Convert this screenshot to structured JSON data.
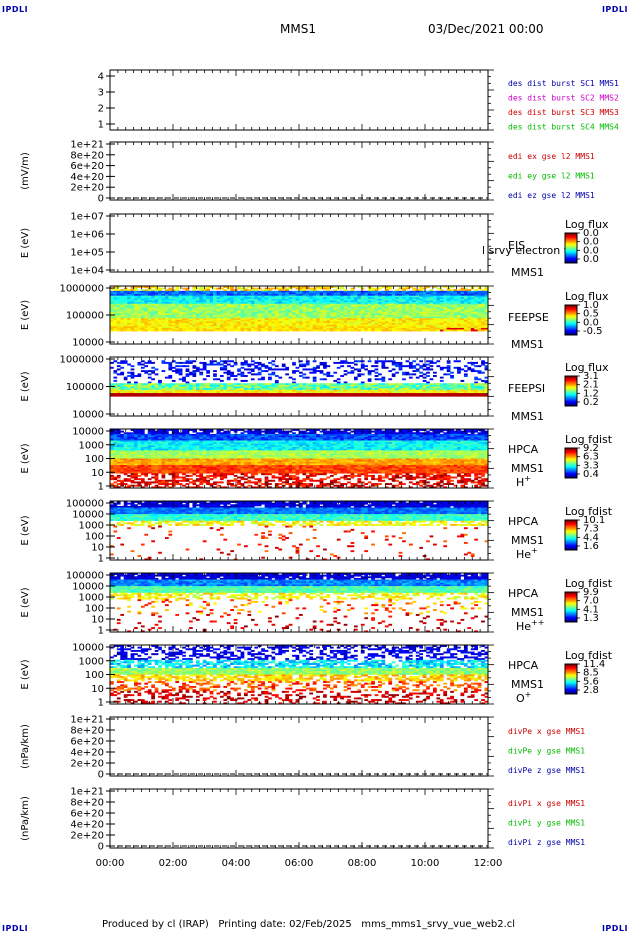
{
  "corner_label": "IPDLI",
  "header": {
    "spacecraft": "MMS1",
    "date": "03/Dec/2021 00:00"
  },
  "footer": {
    "produced_by": "Produced by cl (IRAP)",
    "printing_date": "Printing date: 02/Feb/2025",
    "file": "mms_mms1_srvy_vue_web2.cl"
  },
  "chart_data": {
    "type": "line",
    "x_range": [
      "00:00",
      "12:00"
    ],
    "x_ticks": [
      "00:00",
      "02:00",
      "04:00",
      "06:00",
      "08:00",
      "10:00",
      "12:00"
    ],
    "panels": [
      {
        "id": "burst",
        "ylabel": "",
        "yticks": [
          "1",
          "2",
          "3",
          "4"
        ],
        "ylim": [
          1,
          4
        ],
        "legend": [
          {
            "text": "des dist burst SC1 MMS1",
            "color": "#0000aa"
          },
          {
            "text": "des dist burst SC2 MMS2",
            "color": "#cc00cc"
          },
          {
            "text": "des dist burst SC3 MMS3",
            "color": "#cc0000"
          },
          {
            "text": "des dist burst SC4 MMS4",
            "color": "#00bb00"
          }
        ],
        "series": []
      },
      {
        "id": "edi",
        "ylabel": "(mV/m)",
        "yticks": [
          "0",
          "2e+20",
          "4e+20",
          "6e+20",
          "8e+20",
          "1e+21"
        ],
        "ylim": [
          0,
          1e+21
        ],
        "zero_line": true,
        "legend": [
          {
            "text": "edi ex gse l2 MMS1",
            "color": "#cc0000"
          },
          {
            "text": "edi ey gse l2 MMS1",
            "color": "#00bb00"
          },
          {
            "text": "edi ez gse l2 MMS1",
            "color": "#0000aa"
          }
        ],
        "series": [
          {
            "name": "edi ex gse l2 MMS1",
            "values": []
          },
          {
            "name": "edi ey gse l2 MMS1",
            "values": []
          },
          {
            "name": "edi ez gse l2 MMS1",
            "values": []
          }
        ]
      },
      {
        "id": "eis",
        "ylabel": "E (eV)",
        "yticks": [
          "1e+04",
          "1e+05",
          "1e+06",
          "1e+07"
        ],
        "ylog": true,
        "ylim": [
          10000.0,
          10000000.0
        ],
        "right_labels": [
          "EIS",
          "MMS1"
        ],
        "overlay_label": "l srvy electron to",
        "colorbar": {
          "title": "Log flux",
          "ticks": [
            "0.0",
            "0.0",
            "0.0",
            "0.0"
          ]
        },
        "spectrogram": "empty"
      },
      {
        "id": "feepse",
        "ylabel": "E (eV)",
        "yticks": [
          "10000",
          "100000",
          "1000000"
        ],
        "ylog": true,
        "ylim": [
          10000.0,
          1000000.0
        ],
        "right_labels": [
          "FEEPSE",
          "MMS1"
        ],
        "colorbar": {
          "title": "Log flux",
          "ticks": [
            "1.0",
            "0.5",
            "0.0",
            "-0.5"
          ]
        },
        "spectrogram": "feeps_electron"
      },
      {
        "id": "feepsi",
        "ylabel": "E (eV)",
        "yticks": [
          "10000",
          "100000",
          "1000000"
        ],
        "ylog": true,
        "ylim": [
          10000.0,
          1000000.0
        ],
        "right_labels": [
          "FEEPSI",
          "MMS1"
        ],
        "colorbar": {
          "title": "Log flux",
          "ticks": [
            "3.1",
            "2.1",
            "1.2",
            "0.2"
          ]
        },
        "spectrogram": "feeps_ion"
      },
      {
        "id": "hpca_h",
        "ylabel": "E (eV)",
        "yticks": [
          "1",
          "10",
          "100",
          "1000",
          "10000"
        ],
        "ylog": true,
        "ylim": [
          1,
          40000
        ],
        "right_labels": [
          "HPCA",
          "MMS1"
        ],
        "species": "H",
        "species_sup": "+",
        "colorbar": {
          "title": "Log fdist",
          "ticks": [
            "9.2",
            "6.3",
            "3.3",
            "0.4"
          ]
        },
        "spectrogram": "hpca_h"
      },
      {
        "id": "hpca_he1",
        "ylabel": "E (eV)",
        "yticks": [
          "1",
          "10",
          "100",
          "1000",
          "10000",
          "100000"
        ],
        "ylog": true,
        "ylim": [
          1,
          100000
        ],
        "right_labels": [
          "HPCA",
          "MMS1"
        ],
        "species": "He",
        "species_sup": "+",
        "colorbar": {
          "title": "Log fdist",
          "ticks": [
            "10.1",
            "7.3",
            "4.4",
            "1.6"
          ]
        },
        "spectrogram": "hpca_he1"
      },
      {
        "id": "hpca_he2",
        "ylabel": "E (eV)",
        "yticks": [
          "1",
          "10",
          "100",
          "1000",
          "10000",
          "100000"
        ],
        "ylog": true,
        "ylim": [
          1,
          100000
        ],
        "right_labels": [
          "HPCA",
          "MMS1"
        ],
        "species": "He",
        "species_sup": "++",
        "colorbar": {
          "title": "Log fdist",
          "ticks": [
            "9.9",
            "7.0",
            "4.1",
            "1.3"
          ]
        },
        "spectrogram": "hpca_he2"
      },
      {
        "id": "hpca_o",
        "ylabel": "E (eV)",
        "yticks": [
          "1",
          "10",
          "100",
          "1000",
          "10000"
        ],
        "ylog": true,
        "ylim": [
          1,
          40000
        ],
        "right_labels": [
          "HPCA",
          "MMS1"
        ],
        "species": "O",
        "species_sup": "+",
        "colorbar": {
          "title": "Log fdist",
          "ticks": [
            "11.4",
            "8.5",
            "5.6",
            "2.8"
          ]
        },
        "spectrogram": "hpca_o"
      },
      {
        "id": "divpe",
        "ylabel": "(nPa/km)",
        "yticks": [
          "0",
          "2e+20",
          "4e+20",
          "6e+20",
          "8e+20",
          "1e+21"
        ],
        "ylim": [
          0,
          1e+21
        ],
        "zero_line": true,
        "legend": [
          {
            "text": "divPe x gse MMS1",
            "color": "#cc0000"
          },
          {
            "text": "divPe y gse MMS1",
            "color": "#00bb00"
          },
          {
            "text": "divPe z gse MMS1",
            "color": "#0000aa"
          }
        ],
        "series": [
          {
            "name": "divPe x gse MMS1",
            "values": []
          },
          {
            "name": "divPe y gse MMS1",
            "values": []
          },
          {
            "name": "divPe z gse MMS1",
            "values": []
          }
        ]
      },
      {
        "id": "divpi",
        "ylabel": "(nPa/km)",
        "yticks": [
          "0",
          "2e+20",
          "4e+20",
          "6e+20",
          "8e+20",
          "1e+21"
        ],
        "ylim": [
          0,
          1e+21
        ],
        "zero_line": true,
        "legend": [
          {
            "text": "divPi x gse MMS1",
            "color": "#cc0000"
          },
          {
            "text": "divPi y gse MMS1",
            "color": "#00bb00"
          },
          {
            "text": "divPi z gse MMS1",
            "color": "#0000aa"
          }
        ],
        "series": [
          {
            "name": "divPi x gse MMS1",
            "values": []
          },
          {
            "name": "divPi y gse MMS1",
            "values": []
          },
          {
            "name": "divPi z gse MMS1",
            "values": []
          }
        ]
      }
    ]
  }
}
